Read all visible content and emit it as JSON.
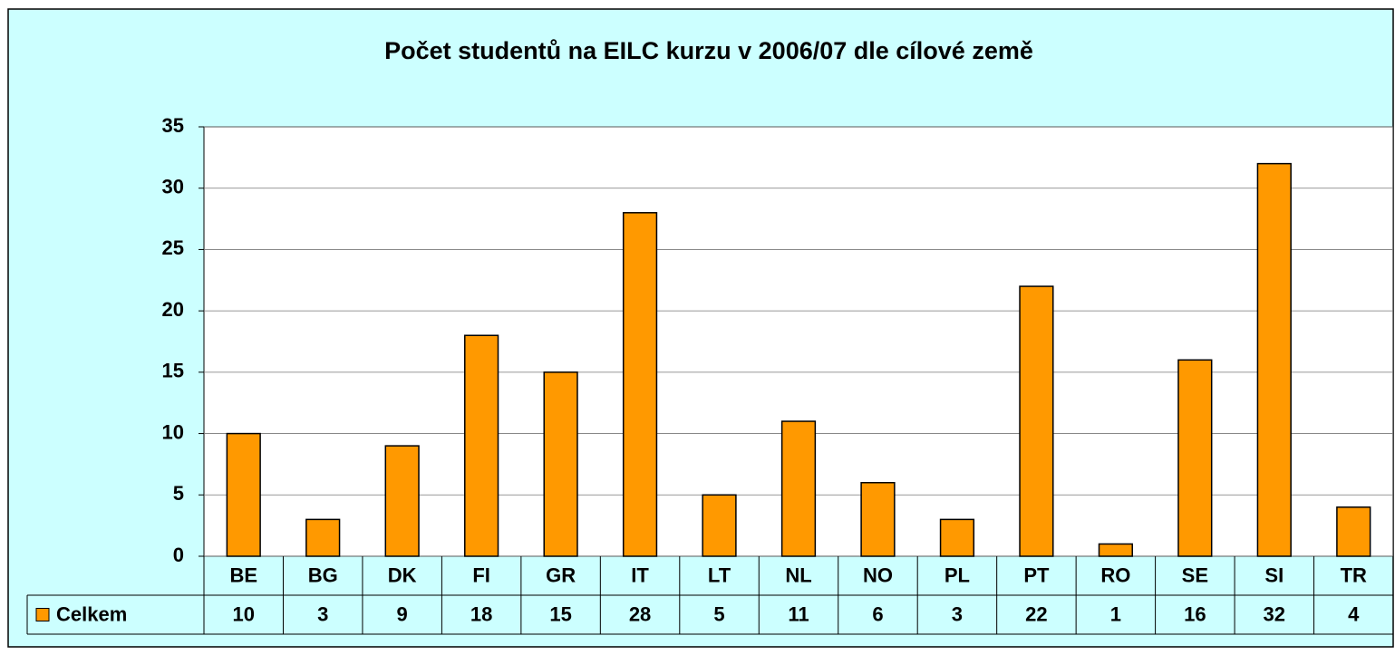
{
  "chart_data": {
    "type": "bar",
    "title": "Počet studentů na EILC kurzu v 2006/07 dle cílové země",
    "categories": [
      "BE",
      "BG",
      "DK",
      "FI",
      "GR",
      "IT",
      "LT",
      "NL",
      "NO",
      "PL",
      "PT",
      "RO",
      "SE",
      "SI",
      "TR"
    ],
    "series": [
      {
        "name": "Celkem",
        "color": "#ff9900",
        "values": [
          10,
          3,
          9,
          18,
          15,
          28,
          5,
          11,
          6,
          3,
          22,
          1,
          16,
          32,
          4
        ]
      }
    ],
    "ylim": [
      0,
      35
    ],
    "yticks": [
      0,
      5,
      10,
      15,
      20,
      25,
      30,
      35
    ],
    "grid": true,
    "data_table": true
  }
}
